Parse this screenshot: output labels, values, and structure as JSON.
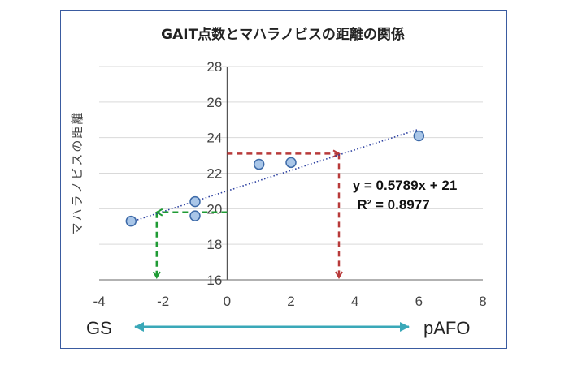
{
  "chart_data": {
    "type": "scatter",
    "title": "GAIT点数とマハラノビスの距離の関係",
    "xlabel": "",
    "ylabel": "マハラノビスの距離",
    "xlim": [
      -4,
      8
    ],
    "ylim": [
      16,
      28
    ],
    "x_ticks": [
      -4,
      -2,
      0,
      2,
      4,
      6,
      8
    ],
    "y_ticks": [
      16,
      18,
      20,
      22,
      24,
      26,
      28
    ],
    "grid": "horizontal",
    "points": [
      {
        "x": -3,
        "y": 19.3
      },
      {
        "x": -1,
        "y": 20.4
      },
      {
        "x": -1,
        "y": 19.6
      },
      {
        "x": 1,
        "y": 22.5
      },
      {
        "x": 2,
        "y": 22.6
      },
      {
        "x": 6,
        "y": 24.1
      }
    ],
    "trendline": {
      "slope": 0.5789,
      "intercept": 21,
      "x_range": [
        -3,
        6
      ],
      "equation": "y = 0.5789x + 21",
      "r_squared": "R² = 0.8977"
    },
    "annotations": [
      {
        "name": "red-guide",
        "color": "#b83a3a",
        "from_y": 23.1,
        "to_x": 3.5
      },
      {
        "name": "green-guide",
        "color": "#1f9b34",
        "from_y": 19.8,
        "to_x": -2.2
      }
    ],
    "left_label": "GS",
    "right_label": "pAFO",
    "colors": {
      "marker_fill": "#a9c6e8",
      "marker_stroke": "#3d6aa8",
      "trendline": "#2b3fa0",
      "grid": "#d9d9d9",
      "range_arrow": "#3aa8b8"
    }
  }
}
